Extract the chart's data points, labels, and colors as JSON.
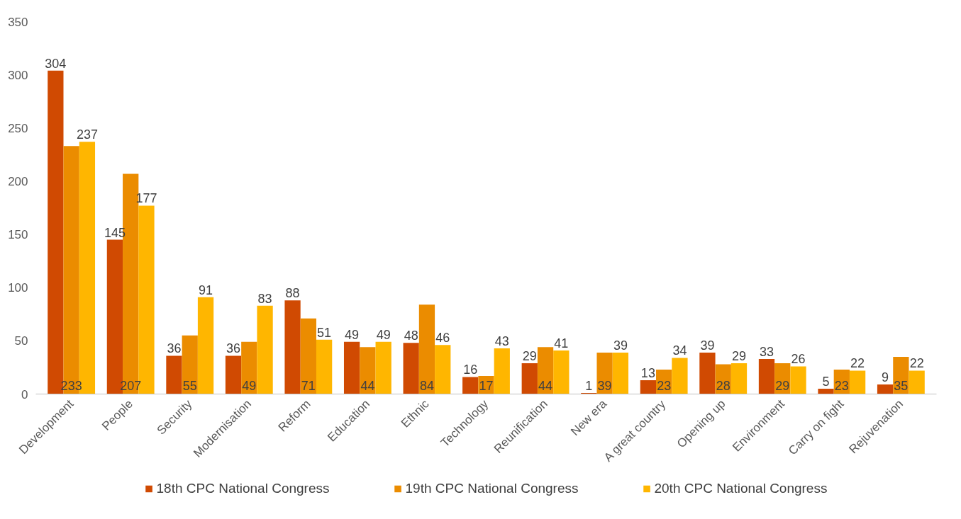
{
  "chart_data": {
    "type": "bar",
    "categories": [
      "Development",
      "People",
      "Security",
      "Modernisation",
      "Reform",
      "Education",
      "Ethnic",
      "Technology",
      "Reunification",
      "New era",
      "A great country",
      "Opening up",
      "Environment",
      "Carry on fight",
      "Rejuvenation"
    ],
    "series": [
      {
        "name": "18th CPC National Congress",
        "color": "#d04a02",
        "values": [
          304,
          145,
          36,
          36,
          88,
          49,
          48,
          16,
          29,
          1,
          13,
          39,
          33,
          5,
          9
        ]
      },
      {
        "name": "19th CPC National Congress",
        "color": "#eb8c00",
        "values": [
          233,
          207,
          55,
          49,
          71,
          44,
          84,
          17,
          44,
          39,
          23,
          28,
          29,
          23,
          35
        ]
      },
      {
        "name": "20th CPC National Congress",
        "color": "#ffb600",
        "values": [
          237,
          177,
          91,
          83,
          51,
          49,
          46,
          43,
          41,
          39,
          34,
          29,
          26,
          22,
          22
        ]
      }
    ],
    "ylim": [
      0,
      350
    ],
    "yticks": [
      0,
      50,
      100,
      150,
      200,
      250,
      300,
      350
    ],
    "data_labels": true,
    "grid": false,
    "legend": "bottom"
  }
}
